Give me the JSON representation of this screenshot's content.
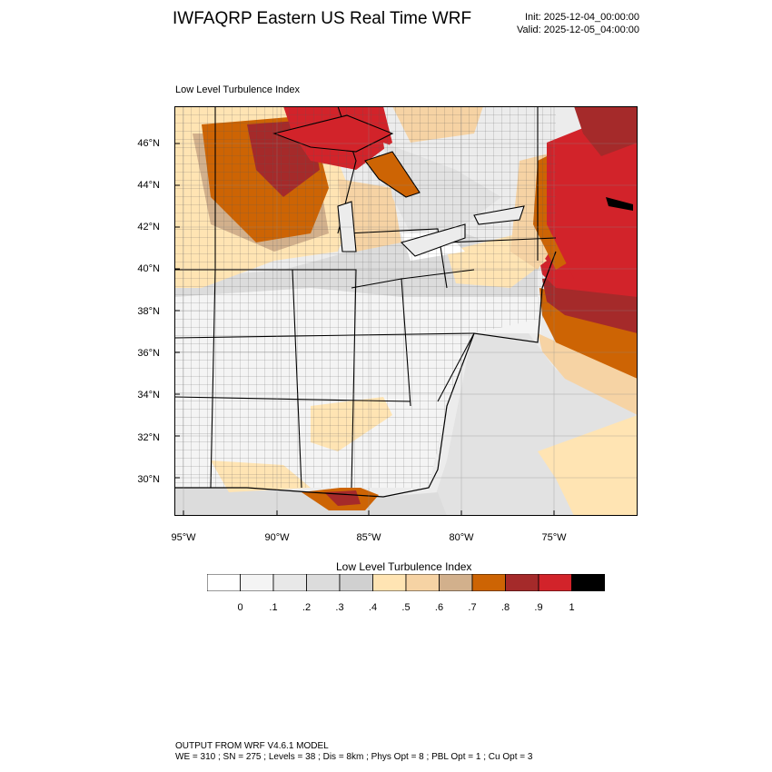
{
  "header": {
    "title": "IWFAQRP Eastern US Real Time WRF",
    "init": "Init: 2025-12-04_00:00:00",
    "valid": "Valid: 2025-12-05_04:00:00"
  },
  "plot": {
    "title": "Low Level Turbulence Index",
    "lat_labels": [
      "46°N",
      "44°N",
      "42°N",
      "40°N",
      "38°N",
      "36°N",
      "34°N",
      "32°N",
      "30°N"
    ],
    "lon_labels": [
      "95°W",
      "90°W",
      "85°W",
      "80°W",
      "75°W"
    ]
  },
  "colorbar": {
    "title": "Low Level Turbulence Index",
    "labels": [
      "0",
      ".1",
      ".2",
      ".3",
      ".4",
      ".5",
      ".6",
      ".7",
      ".8",
      ".9",
      "1"
    ],
    "colors": [
      "#ffffff",
      "#f4f4f4",
      "#e8e8e8",
      "#dcdcdc",
      "#d0d0d0",
      "#ffe4b3",
      "#f6d3a4",
      "#d2b08c",
      "#cd6404",
      "#a52a2a",
      "#d2232a",
      "#000000"
    ]
  },
  "footer": {
    "line1": "OUTPUT FROM WRF V4.6.1 MODEL",
    "line2": "WE = 310 ; SN = 275 ; Levels = 38 ; Dis = 8km ; Phys Opt = 8 ; PBL Opt = 1 ; Cu Opt = 3"
  }
}
